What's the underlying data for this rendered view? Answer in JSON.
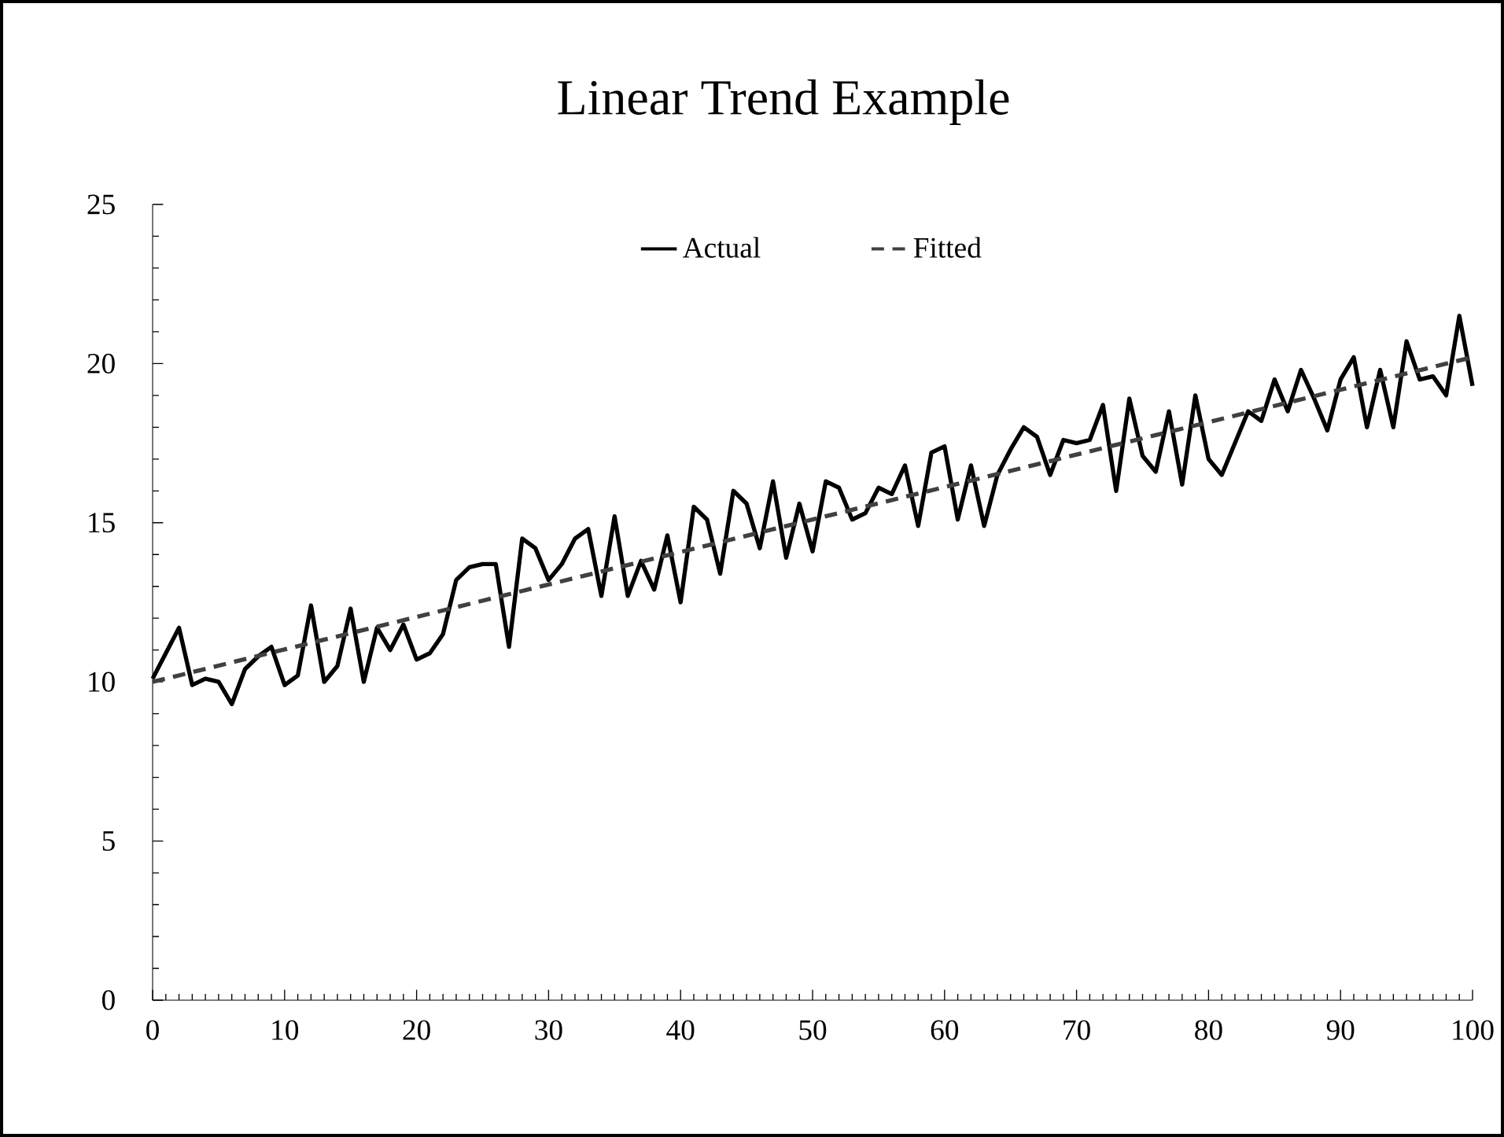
{
  "chart_data": {
    "type": "line",
    "title": "Linear Trend Example",
    "xlim": [
      0,
      100
    ],
    "ylim": [
      0,
      25
    ],
    "xticks": [
      0,
      10,
      20,
      30,
      40,
      50,
      60,
      70,
      80,
      90,
      100
    ],
    "yticks": [
      0,
      5,
      10,
      15,
      20,
      25
    ],
    "grid": false,
    "legend": "top",
    "marker": "none",
    "series": [
      {
        "name": "Actual",
        "color": "#000000",
        "line_style": "solid",
        "x": [
          0,
          1,
          2,
          3,
          4,
          5,
          6,
          7,
          8,
          9,
          10,
          11,
          12,
          13,
          14,
          15,
          16,
          17,
          18,
          19,
          20,
          21,
          22,
          23,
          24,
          25,
          26,
          27,
          28,
          29,
          30,
          31,
          32,
          33,
          34,
          35,
          36,
          37,
          38,
          39,
          40,
          41,
          42,
          43,
          44,
          45,
          46,
          47,
          48,
          49,
          50,
          51,
          52,
          53,
          54,
          55,
          56,
          57,
          58,
          59,
          60,
          61,
          62,
          63,
          64,
          65,
          66,
          67,
          68,
          69,
          70,
          71,
          72,
          73,
          74,
          75,
          76,
          77,
          78,
          79,
          80,
          81,
          82,
          83,
          84,
          85,
          86,
          87,
          88,
          89,
          90,
          91,
          92,
          93,
          94,
          95,
          96,
          97,
          98,
          99,
          100
        ],
        "values": [
          10.1,
          10.9,
          11.7,
          9.9,
          10.1,
          10.0,
          9.3,
          10.4,
          10.8,
          11.1,
          9.9,
          10.2,
          12.4,
          10.0,
          10.5,
          12.3,
          10.0,
          11.7,
          11.0,
          11.8,
          10.7,
          10.9,
          11.5,
          13.2,
          13.6,
          13.7,
          13.7,
          11.1,
          14.5,
          14.2,
          13.2,
          13.7,
          14.5,
          14.8,
          12.7,
          15.2,
          12.7,
          13.8,
          12.9,
          14.6,
          12.5,
          15.5,
          15.1,
          13.4,
          16.0,
          15.6,
          14.2,
          16.3,
          13.9,
          15.6,
          14.1,
          16.3,
          16.1,
          15.1,
          15.3,
          16.1,
          15.9,
          16.8,
          14.9,
          17.2,
          17.4,
          15.1,
          16.8,
          14.9,
          16.5,
          17.3,
          18.0,
          17.7,
          16.5,
          17.6,
          17.5,
          17.6,
          18.7,
          16.0,
          18.9,
          17.1,
          16.6,
          18.5,
          16.2,
          19.0,
          17.0,
          16.5,
          17.5,
          18.5,
          18.2,
          19.5,
          18.5,
          19.8,
          18.9,
          17.9,
          19.5,
          20.2,
          18.0,
          19.8,
          18.0,
          20.7,
          19.5,
          19.6,
          19.0,
          21.5,
          19.3
        ]
      },
      {
        "name": "Fitted",
        "color": "#404040",
        "line_style": "dashed",
        "x": [
          0,
          100
        ],
        "values": [
          10.0,
          20.2
        ]
      }
    ]
  }
}
